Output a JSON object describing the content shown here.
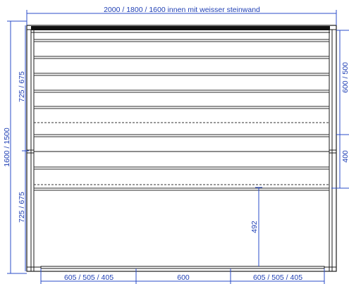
{
  "dimensions": {
    "top_width": "2000 / 1800 / 1600 innen mit weisser steinwand",
    "total_height": "1600 / 1500",
    "left_upper_height": "725 / 675",
    "left_lower_height": "725 / 675",
    "right_upper_height": "600 / 500",
    "right_lower_height": "400",
    "inner_opening_height": "492",
    "bottom_left_width": "605 / 505 / 405",
    "bottom_middle_width": "600",
    "bottom_right_width": "605 / 505 / 405"
  }
}
